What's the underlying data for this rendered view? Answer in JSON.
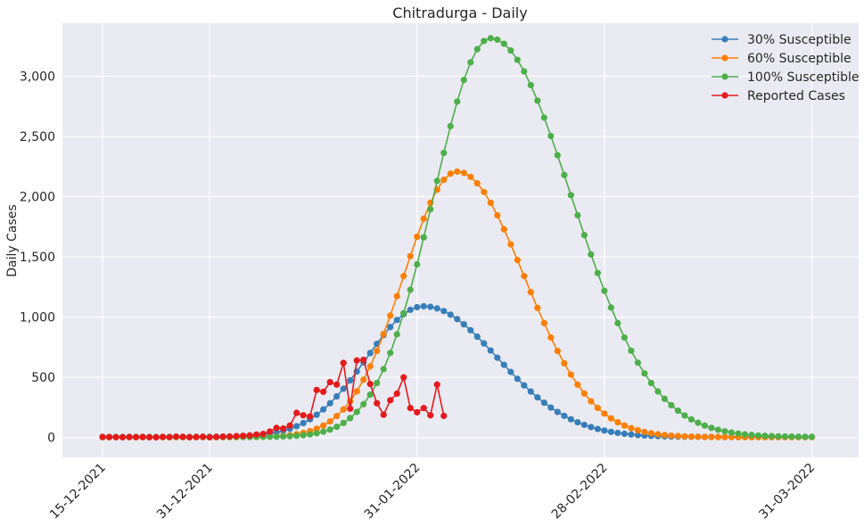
{
  "chart_data": {
    "type": "line",
    "title": "Chitradurga - Daily",
    "xlabel": "",
    "ylabel": "Daily Cases",
    "x_start": "15-12-2021",
    "x_ticks": [
      {
        "label": "15-12-2021",
        "day": 0
      },
      {
        "label": "31-12-2021",
        "day": 16
      },
      {
        "label": "31-01-2022",
        "day": 47
      },
      {
        "label": "28-02-2022",
        "day": 75
      },
      {
        "label": "31-03-2022",
        "day": 106
      }
    ],
    "xlim_days": [
      -6,
      113
    ],
    "ylim": [
      -165,
      3440
    ],
    "y_ticks": [
      0,
      500,
      1000,
      1500,
      2000,
      2500,
      3000
    ],
    "y_tick_labels": [
      "0",
      "500",
      "1,000",
      "1,500",
      "2,000",
      "2,500",
      "3,000"
    ],
    "grid": true,
    "legend_position": "top-right",
    "series": [
      {
        "name": "30% Susceptible",
        "color": "#377eb8",
        "peak_day": 48,
        "peak_value": 1085,
        "sigma_left": 8.5,
        "sigma_right": 11.0,
        "floor": 5,
        "start_day": 0,
        "end_day": 106
      },
      {
        "name": "60% Susceptible",
        "color": "#ff7f00",
        "peak_day": 53,
        "peak_value": 2205,
        "sigma_left": 8.0,
        "sigma_right": 10.0,
        "floor": 3,
        "start_day": 0,
        "end_day": 106
      },
      {
        "name": "100% Susceptible",
        "color": "#4daf4a",
        "peak_day": 58,
        "peak_value": 3310,
        "sigma_left": 8.5,
        "sigma_right": 12.0,
        "floor": 5,
        "start_day": 0,
        "end_day": 106
      },
      {
        "name": "Reported Cases",
        "color": "#e41a1c",
        "start_day": 0,
        "values": [
          5,
          4,
          3,
          3,
          5,
          4,
          5,
          3,
          2,
          5,
          4,
          8,
          6,
          3,
          5,
          7,
          3,
          6,
          8,
          9,
          12,
          15,
          18,
          25,
          30,
          50,
          80,
          75,
          100,
          205,
          185,
          175,
          395,
          380,
          460,
          440,
          620,
          240,
          640,
          645,
          445,
          285,
          190,
          310,
          365,
          500,
          245,
          210,
          245,
          185,
          440,
          180
        ]
      }
    ]
  }
}
